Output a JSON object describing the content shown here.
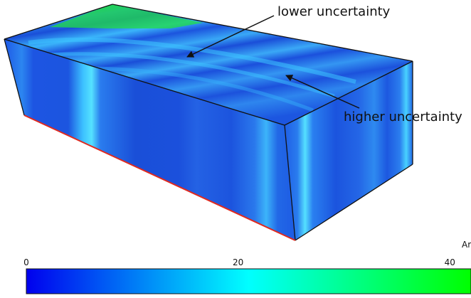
{
  "annotations": {
    "lower": "lower uncertainty",
    "higher": "higher uncertainty"
  },
  "clipped_label": "Ar",
  "colorbar": {
    "ticks": [
      {
        "label": "0",
        "value": 0
      },
      {
        "label": "20",
        "value": 20
      },
      {
        "label": "40",
        "value": 40
      }
    ],
    "range": [
      0,
      42
    ],
    "colors": [
      "#0000ee",
      "#00ffff",
      "#00ff00"
    ]
  },
  "colors": {
    "volume_base": "#1a5ee8",
    "stripe_light": "#35c8ff",
    "stripe_dark": "#1443d4",
    "green_region": "#22dd44",
    "box_edge": "#111111",
    "highlight_edge": "#e0291f"
  }
}
